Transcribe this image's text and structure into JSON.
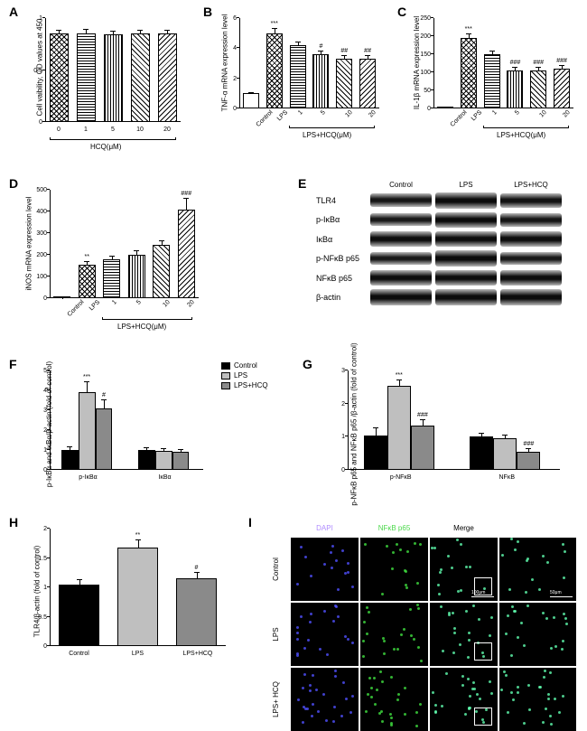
{
  "panels": {
    "A": {
      "label": "A",
      "type": "bar",
      "ylabel": "Cell vaibility, OD values at 450",
      "xlabel": "HCQ(μM)",
      "categories": [
        "0",
        "1",
        "5",
        "10",
        "20"
      ],
      "values": [
        0.85,
        0.85,
        0.84,
        0.85,
        0.85
      ],
      "errors": [
        0.03,
        0.04,
        0.03,
        0.03,
        0.03
      ],
      "ylim": [
        0,
        1.0
      ],
      "yticks": [
        0.0,
        0.5,
        1.0
      ],
      "patterns": [
        "crosshatch",
        "hlines",
        "vlines",
        "diag1",
        "diag2"
      ],
      "bar_border": "#000000",
      "background_color": "#ffffff"
    },
    "B": {
      "label": "B",
      "type": "bar",
      "ylabel": "TNF-α mRNA expression level",
      "xlabel_prefix": "Control",
      "xlabel_lps": "LPS",
      "xlabel_bracket": "LPS+HCQ(μM)",
      "categories": [
        "Control",
        "LPS",
        "1",
        "5",
        "10",
        "20"
      ],
      "values": [
        1.0,
        5.0,
        4.2,
        3.6,
        3.3,
        3.3
      ],
      "errors": [
        0.05,
        0.3,
        0.2,
        0.2,
        0.2,
        0.2
      ],
      "sig": [
        "",
        "***",
        "",
        "#",
        "##",
        "##"
      ],
      "ylim": [
        0,
        6
      ],
      "yticks": [
        0,
        2,
        4,
        6
      ],
      "patterns": [
        "solid_white",
        "crosshatch",
        "hlines",
        "vlines",
        "diag1",
        "diag2"
      ]
    },
    "C": {
      "label": "C",
      "type": "bar",
      "ylabel": "IL-1β mRNA expression level",
      "xlabel_bracket": "LPS+HCQ(μM)",
      "categories": [
        "Control",
        "LPS",
        "1",
        "5",
        "10",
        "20"
      ],
      "values": [
        1,
        195,
        150,
        105,
        105,
        110
      ],
      "errors": [
        0.5,
        10,
        8,
        8,
        8,
        8
      ],
      "sig": [
        "",
        "***",
        "",
        "###",
        "###",
        "###"
      ],
      "ylim": [
        0,
        250
      ],
      "yticks": [
        0,
        50,
        100,
        150,
        200,
        250
      ],
      "patterns": [
        "solid_white",
        "crosshatch",
        "hlines",
        "vlines",
        "diag1",
        "diag2"
      ]
    },
    "D": {
      "label": "D",
      "type": "bar",
      "ylabel": "iNOS mRNA expression level",
      "xlabel_bracket": "LPS+HCQ(μM)",
      "categories": [
        "Control",
        "LPS",
        "1",
        "5",
        "10",
        "20"
      ],
      "values": [
        1,
        155,
        180,
        200,
        245,
        410
      ],
      "errors": [
        0.5,
        10,
        12,
        15,
        18,
        50
      ],
      "sig": [
        "",
        "**",
        "",
        "",
        "",
        "###"
      ],
      "ylim": [
        0,
        500
      ],
      "yticks": [
        0,
        100,
        200,
        300,
        400,
        500
      ],
      "patterns": [
        "solid_white",
        "crosshatch",
        "hlines",
        "vlines",
        "diag1",
        "diag2"
      ]
    },
    "E": {
      "label": "E",
      "type": "western_blot",
      "conditions": [
        "Control",
        "LPS",
        "LPS+HCQ"
      ],
      "proteins": [
        "TLR4",
        "p-IκBα",
        "IκBα",
        "p-NFκB p65",
        "NFκB p65",
        "β-actin"
      ],
      "intensities": [
        [
          0.6,
          0.95,
          0.75
        ],
        [
          0.5,
          0.95,
          0.6
        ],
        [
          0.9,
          0.9,
          0.9
        ],
        [
          0.5,
          0.95,
          0.55
        ],
        [
          0.9,
          0.9,
          0.9
        ],
        [
          0.95,
          0.95,
          0.95
        ]
      ]
    },
    "F": {
      "label": "F",
      "type": "grouped_bar",
      "ylabel": "p-IκBα and IκBα/β-actin (fold of control)",
      "groups": [
        "p-IκBα",
        "IκBα"
      ],
      "series": [
        "Control",
        "LPS",
        "LPS+HCQ"
      ],
      "values": [
        [
          1.0,
          3.9,
          3.1
        ],
        [
          1.0,
          0.95,
          0.9
        ]
      ],
      "errors": [
        [
          0.15,
          0.5,
          0.4
        ],
        [
          0.1,
          0.1,
          0.1
        ]
      ],
      "sig": [
        [
          "",
          "***",
          "#"
        ],
        [
          "",
          "",
          ""
        ]
      ],
      "ylim": [
        0,
        5
      ],
      "yticks": [
        0,
        1,
        2,
        3,
        4,
        5
      ],
      "colors": [
        "#000000",
        "#bfbfbf",
        "#8a8a8a"
      ]
    },
    "G": {
      "label": "G",
      "type": "grouped_bar",
      "ylabel": "p-NFκB p65 and NFκB p65 /β-actin (fold of control)",
      "groups": [
        "p-NFκB",
        "NFκB"
      ],
      "series": [
        "Control",
        "LPS",
        "LPS+HCQ"
      ],
      "values": [
        [
          1.05,
          2.55,
          1.35
        ],
        [
          1.0,
          0.95,
          0.55
        ]
      ],
      "errors": [
        [
          0.2,
          0.15,
          0.15
        ],
        [
          0.1,
          0.1,
          0.08
        ]
      ],
      "sig": [
        [
          "",
          "***",
          "###"
        ],
        [
          "",
          "",
          "###"
        ]
      ],
      "ylim": [
        0,
        3
      ],
      "yticks": [
        0,
        1,
        2,
        3
      ],
      "colors": [
        "#000000",
        "#bfbfbf",
        "#8a8a8a"
      ]
    },
    "H": {
      "label": "H",
      "type": "bar",
      "ylabel": "TLR4/β-actin (fold of control)",
      "categories": [
        "Control",
        "LPS",
        "LPS+HCQ"
      ],
      "values": [
        1.05,
        1.68,
        1.15
      ],
      "errors": [
        0.08,
        0.12,
        0.1
      ],
      "sig": [
        "",
        "**",
        "#"
      ],
      "ylim": [
        0,
        2.0
      ],
      "yticks": [
        0.0,
        0.5,
        1.0,
        1.5,
        2.0
      ],
      "colors": [
        "#000000",
        "#bfbfbf",
        "#8a8a8a"
      ]
    },
    "I": {
      "label": "I",
      "type": "fluorescence",
      "col_headers": [
        "DAPI",
        "NFκB p65",
        "Merge",
        ""
      ],
      "col_header_colors": [
        "#b08cff",
        "#4cd94c",
        "#ffffff",
        ""
      ],
      "row_headers": [
        "Control",
        "LPS",
        "LPS+ HCQ"
      ],
      "scale_bars": [
        "100μm",
        "50μm"
      ],
      "box_indicator": true
    }
  },
  "legend_FG": {
    "items": [
      "Control",
      "LPS",
      "LPS+HCQ"
    ],
    "colors": [
      "#000000",
      "#bfbfbf",
      "#8a8a8a"
    ]
  }
}
